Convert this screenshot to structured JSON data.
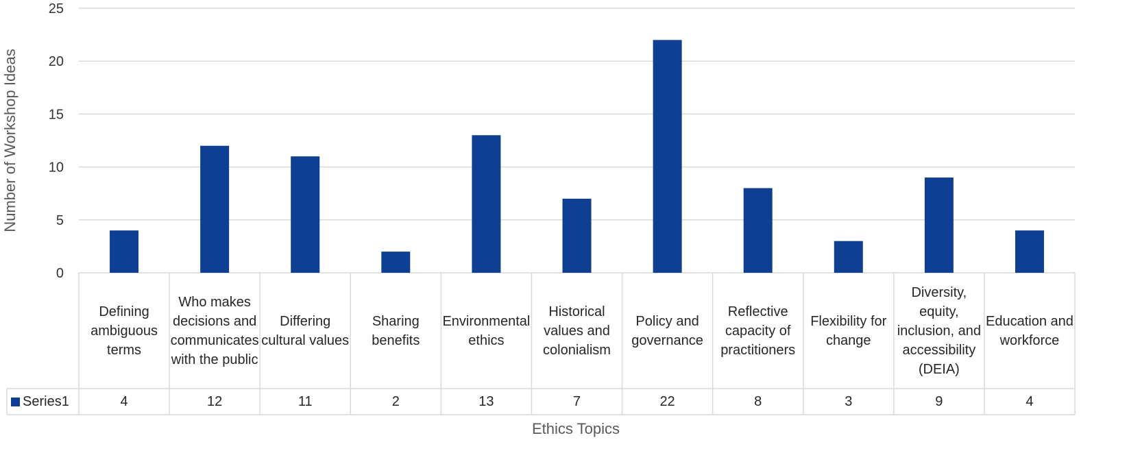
{
  "chart_data": {
    "type": "bar",
    "title": "",
    "xlabel": "Ethics Topics",
    "ylabel": "Number of Workshop Ideas",
    "ylim": [
      0,
      25
    ],
    "yticks": [
      0,
      5,
      10,
      15,
      20,
      25
    ],
    "grid": true,
    "categories": [
      "Defining ambiguous terms",
      "Who makes decisions and communicates with the public",
      "Differing cultural values",
      "Sharing benefits",
      "Environmental ethics",
      "Historical values and colonialism",
      "Policy and governance",
      "Reflective capacity of practitioners",
      "Flexibility for change",
      "Diversity, equity, inclusion, and accessibility (DEIA)",
      "Education and workforce"
    ],
    "series": [
      {
        "name": "Series1",
        "values": [
          4,
          12,
          11,
          2,
          13,
          7,
          22,
          8,
          3,
          9,
          4
        ],
        "color": "#0E3F92"
      }
    ],
    "data_table": true
  }
}
